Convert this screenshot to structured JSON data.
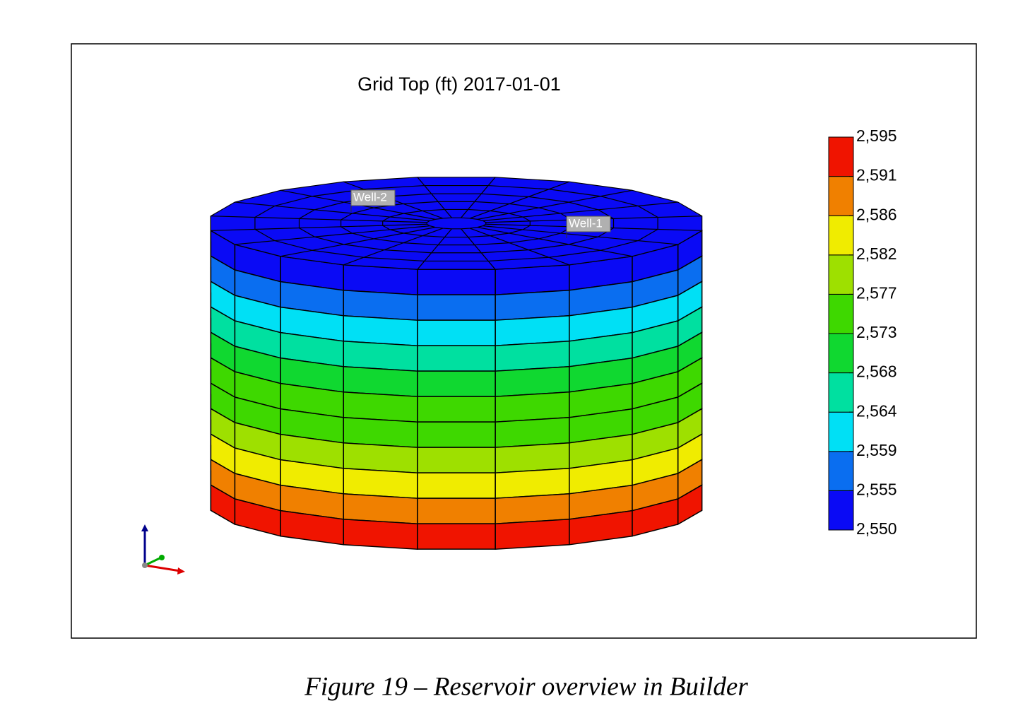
{
  "chart_data": {
    "type": "3d-grid",
    "title": "Grid Top (ft) 2017-01-01",
    "annotations": [
      "Well-2",
      "Well-1"
    ],
    "colors": [
      "#0a0af5",
      "#0a6ef0",
      "#00e0f5",
      "#00e0a0",
      "#10d830",
      "#3ed800",
      "#9ee000",
      "#f0ec00",
      "#f08000",
      "#f01400"
    ],
    "colorbar_lim": [
      2550,
      2595
    ],
    "colorbar_ticks": [
      {
        "value": 2550,
        "label": "2,550"
      },
      {
        "value": 2554.5,
        "label": "2,555"
      },
      {
        "value": 2559,
        "label": "2,559"
      },
      {
        "value": 2563.5,
        "label": "2,564"
      },
      {
        "value": 2568,
        "label": "2,568"
      },
      {
        "value": 2572.5,
        "label": "2,573"
      },
      {
        "value": 2577,
        "label": "2,577"
      },
      {
        "value": 2581.5,
        "label": "2,582"
      },
      {
        "value": 2586,
        "label": "2,586"
      },
      {
        "value": 2590.5,
        "label": "2,591"
      },
      {
        "value": 2595,
        "label": "2,595"
      }
    ]
  },
  "caption": "Figure 19 – Reservoir overview in Builder"
}
